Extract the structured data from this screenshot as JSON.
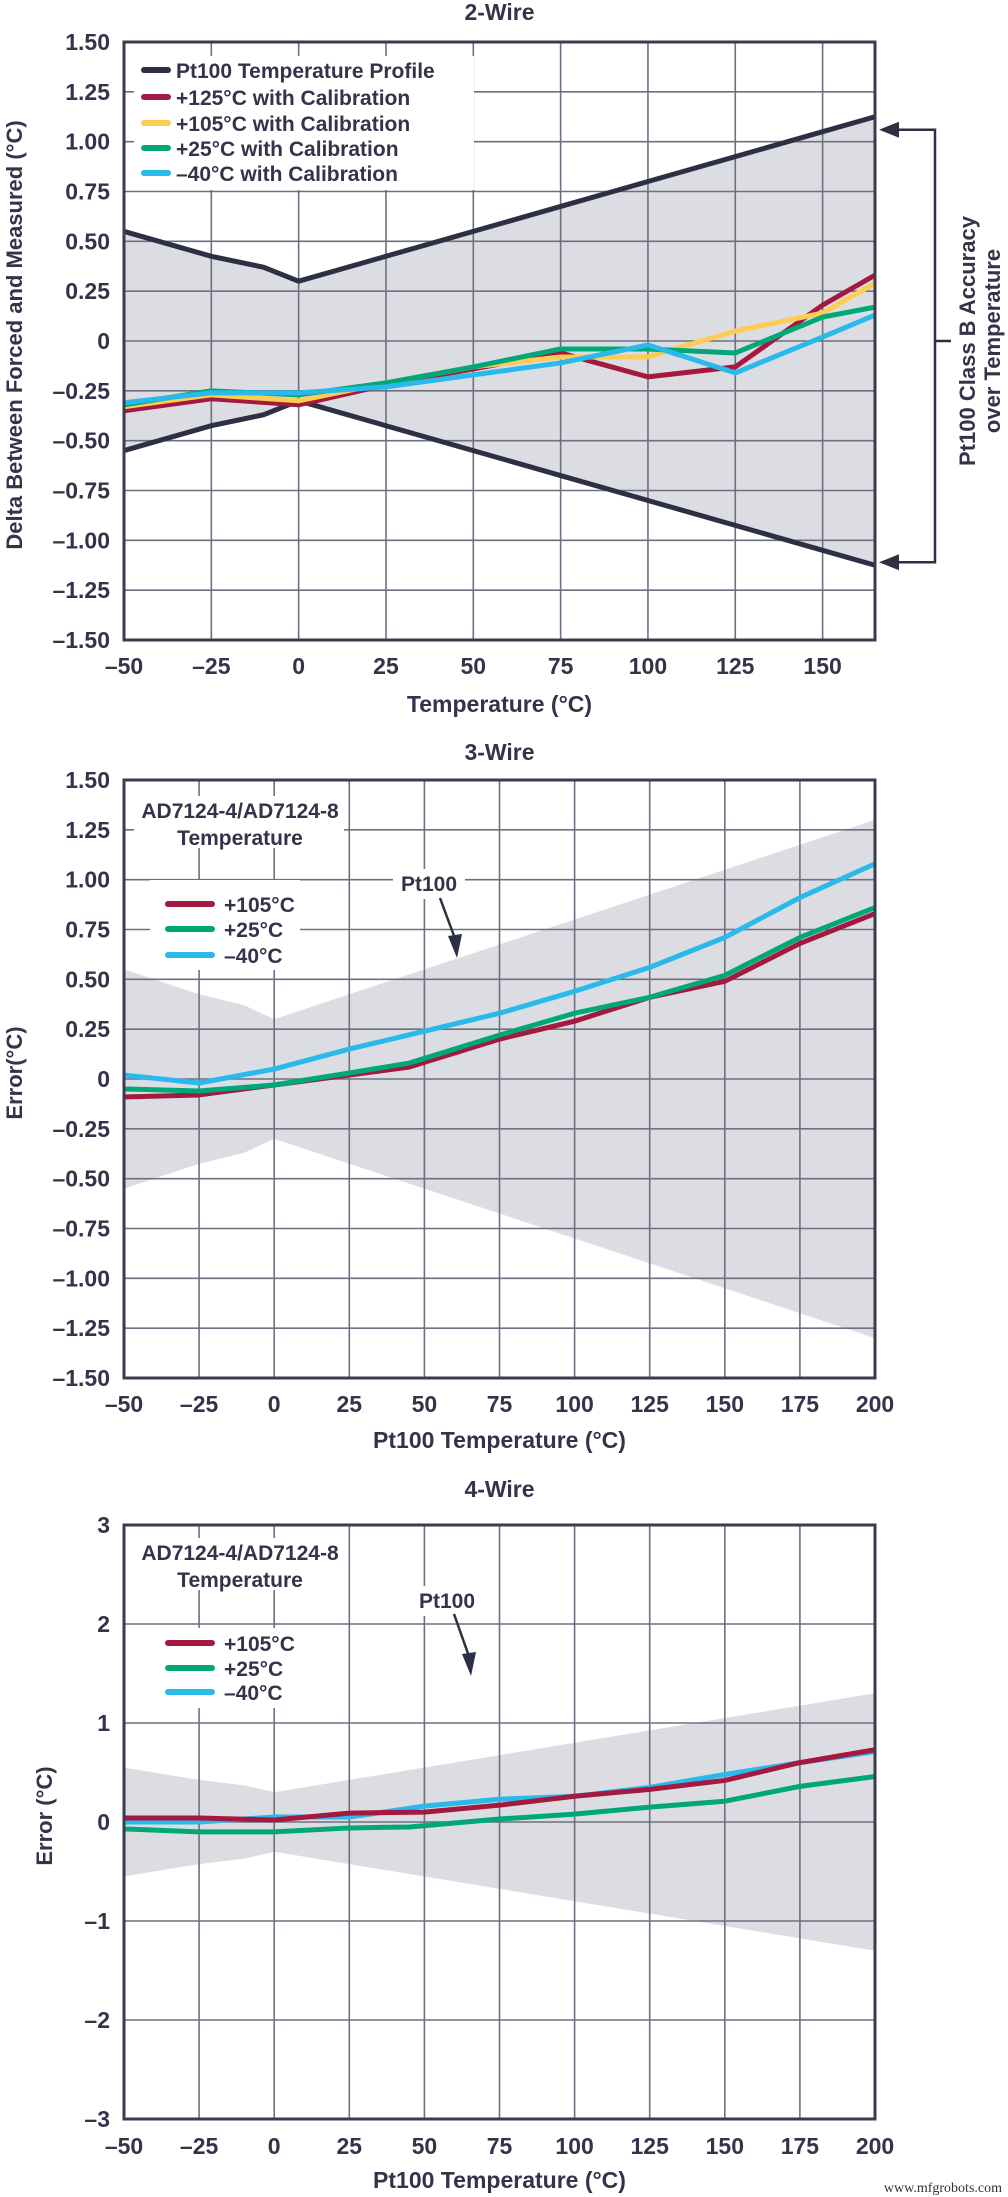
{
  "colors": {
    "profile": "#2d2f45",
    "red": "#a3193f",
    "yellow": "#fdcc52",
    "green": "#00a878",
    "cyan": "#29b9ea",
    "band": "#dcdde3",
    "grid": "#6e6f80"
  },
  "watermark": "www.mfgrobots.com",
  "chart_data": [
    {
      "type": "line",
      "title": "2-Wire",
      "xlabel": "Temperature (°C)",
      "ylabel": "Delta Between Forced and Measured (°C)",
      "xlim": [
        -50,
        165
      ],
      "ylim": [
        -1.5,
        1.5
      ],
      "xticks": [
        -50,
        -25,
        0,
        25,
        50,
        75,
        100,
        125,
        150
      ],
      "xtick_labels": [
        "–50",
        "–25",
        "0",
        "25",
        "50",
        "75",
        "100",
        "125",
        "150"
      ],
      "yticks": [
        1.5,
        1.25,
        1.0,
        0.75,
        0.5,
        0.25,
        0,
        -0.25,
        -0.5,
        -0.75,
        -1.0,
        -1.25,
        -1.5
      ],
      "ytick_labels": [
        "1.50",
        "1.25",
        "1.00",
        "0.75",
        "0.50",
        "0.25",
        "0",
        "–0.25",
        "–0.50",
        "–0.75",
        "–1.00",
        "–1.25",
        "–1.50"
      ],
      "grid": true,
      "legend_placement": "top-left",
      "band_x": [
        -50,
        -25,
        -10,
        0,
        25,
        50,
        75,
        100,
        125,
        150,
        165
      ],
      "band_upper": [
        0.55,
        0.425,
        0.37,
        0.3,
        0.425,
        0.55,
        0.675,
        0.8,
        0.925,
        1.05,
        1.125
      ],
      "band_lower": [
        -0.55,
        -0.425,
        -0.37,
        -0.3,
        -0.425,
        -0.55,
        -0.675,
        -0.8,
        -0.925,
        -1.05,
        -1.125
      ],
      "band_series_name": "Pt100 Temperature Profile",
      "band_annotation": [
        "Pt100 Class B Accuracy",
        "over Temperature"
      ],
      "series": [
        {
          "name": "+125°C with Calibration",
          "color": "#a3193f",
          "x": [
            -50,
            -25,
            0,
            25,
            50,
            75,
            100,
            125,
            150,
            165
          ],
          "y": [
            -0.35,
            -0.29,
            -0.32,
            -0.22,
            -0.14,
            -0.06,
            -0.18,
            -0.13,
            0.18,
            0.33
          ]
        },
        {
          "name": "+105°C with Calibration",
          "color": "#fdcc52",
          "x": [
            -50,
            -25,
            0,
            25,
            50,
            75,
            100,
            125,
            150,
            165
          ],
          "y": [
            -0.33,
            -0.27,
            -0.3,
            -0.21,
            -0.13,
            -0.08,
            -0.08,
            0.05,
            0.14,
            0.29
          ]
        },
        {
          "name": "+25°C with Calibration",
          "color": "#00a878",
          "x": [
            -50,
            -25,
            0,
            25,
            50,
            75,
            100,
            125,
            150,
            165
          ],
          "y": [
            -0.32,
            -0.25,
            -0.27,
            -0.21,
            -0.13,
            -0.04,
            -0.04,
            -0.06,
            0.12,
            0.17
          ]
        },
        {
          "name": "–40°C with Calibration",
          "color": "#29b9ea",
          "x": [
            -50,
            -25,
            0,
            25,
            50,
            75,
            100,
            125,
            150,
            165
          ],
          "y": [
            -0.31,
            -0.26,
            -0.26,
            -0.23,
            -0.17,
            -0.11,
            -0.02,
            -0.16,
            0.02,
            0.13
          ]
        }
      ]
    },
    {
      "type": "line",
      "title": "3-Wire",
      "xlabel": "Pt100 Temperature (°C)",
      "ylabel": "Error(°C)",
      "xlim": [
        -50,
        200
      ],
      "ylim": [
        -1.5,
        1.5
      ],
      "xticks": [
        -50,
        -25,
        0,
        25,
        50,
        75,
        100,
        125,
        150,
        175,
        200
      ],
      "xtick_labels": [
        "–50",
        "–25",
        "0",
        "25",
        "50",
        "75",
        "100",
        "125",
        "150",
        "175",
        "200"
      ],
      "yticks": [
        1.5,
        1.25,
        1.0,
        0.75,
        0.5,
        0.25,
        0,
        -0.25,
        -0.5,
        -0.75,
        -1.0,
        -1.25,
        -1.5
      ],
      "ytick_labels": [
        "1.50",
        "1.25",
        "1.00",
        "0.75",
        "0.50",
        "0.25",
        "0",
        "–0.25",
        "–0.50",
        "–0.75",
        "–1.00",
        "–1.25",
        "–1.50"
      ],
      "grid": true,
      "legend_placement": "top-left",
      "legend_title": [
        "AD7124-4/AD7124-8",
        "Temperature"
      ],
      "band_label": "Pt100",
      "band_x": [
        -50,
        -25,
        -10,
        0,
        25,
        50,
        75,
        100,
        125,
        150,
        175,
        200
      ],
      "band_upper": [
        0.55,
        0.425,
        0.37,
        0.3,
        0.425,
        0.55,
        0.675,
        0.8,
        0.925,
        1.05,
        1.175,
        1.3
      ],
      "band_lower": [
        -0.55,
        -0.425,
        -0.37,
        -0.3,
        -0.425,
        -0.55,
        -0.675,
        -0.8,
        -0.925,
        -1.05,
        -1.175,
        -1.3
      ],
      "series": [
        {
          "name": "+105°C",
          "color": "#a3193f",
          "x": [
            -50,
            -25,
            0,
            25,
            45,
            75,
            100,
            125,
            150,
            175,
            200
          ],
          "y": [
            -0.09,
            -0.08,
            -0.03,
            0.02,
            0.06,
            0.2,
            0.29,
            0.41,
            0.49,
            0.68,
            0.83
          ]
        },
        {
          "name": "+25°C",
          "color": "#00a878",
          "x": [
            -50,
            -25,
            0,
            25,
            45,
            75,
            100,
            125,
            150,
            175,
            200
          ],
          "y": [
            -0.05,
            -0.06,
            -0.03,
            0.03,
            0.08,
            0.22,
            0.33,
            0.41,
            0.52,
            0.71,
            0.86
          ]
        },
        {
          "name": "–40°C",
          "color": "#29b9ea",
          "x": [
            -50,
            -25,
            0,
            25,
            50,
            75,
            100,
            125,
            150,
            175,
            200
          ],
          "y": [
            0.02,
            -0.02,
            0.05,
            0.15,
            0.24,
            0.33,
            0.44,
            0.56,
            0.71,
            0.91,
            1.08
          ]
        }
      ]
    },
    {
      "type": "line",
      "title": "4-Wire",
      "xlabel": "Pt100 Temperature (°C)",
      "ylabel": "Error (°C)",
      "xlim": [
        -50,
        200
      ],
      "ylim": [
        -3,
        3
      ],
      "xticks": [
        -50,
        -25,
        0,
        25,
        50,
        75,
        100,
        125,
        150,
        175,
        200
      ],
      "xtick_labels": [
        "–50",
        "–25",
        "0",
        "25",
        "50",
        "75",
        "100",
        "125",
        "150",
        "175",
        "200"
      ],
      "yticks": [
        3,
        2,
        1,
        0,
        -1,
        -2,
        -3
      ],
      "ytick_labels": [
        "3",
        "2",
        "1",
        "0",
        "–1",
        "–2",
        "–3"
      ],
      "grid": true,
      "legend_placement": "top-left",
      "legend_title": [
        "AD7124-4/AD7124-8",
        "Temperature"
      ],
      "band_label": "Pt100",
      "band_x": [
        -50,
        -25,
        -10,
        0,
        25,
        50,
        75,
        100,
        125,
        150,
        175,
        200
      ],
      "band_upper": [
        0.55,
        0.425,
        0.37,
        0.3,
        0.425,
        0.55,
        0.675,
        0.8,
        0.925,
        1.05,
        1.175,
        1.3
      ],
      "band_lower": [
        -0.55,
        -0.425,
        -0.37,
        -0.3,
        -0.425,
        -0.55,
        -0.675,
        -0.8,
        -0.925,
        -1.05,
        -1.175,
        -1.3
      ],
      "series": [
        {
          "name": "–40°C",
          "color": "#29b9ea",
          "x": [
            -50,
            -25,
            0,
            25,
            50,
            75,
            100,
            125,
            150,
            175,
            200
          ],
          "y": [
            0.0,
            0.0,
            0.05,
            0.05,
            0.16,
            0.23,
            0.26,
            0.35,
            0.48,
            0.6,
            0.71
          ]
        },
        {
          "name": "+25°C",
          "color": "#00a878",
          "x": [
            -50,
            -25,
            0,
            25,
            45,
            75,
            100,
            125,
            150,
            175,
            200
          ],
          "y": [
            -0.07,
            -0.1,
            -0.1,
            -0.06,
            -0.05,
            0.03,
            0.08,
            0.15,
            0.21,
            0.36,
            0.46
          ]
        },
        {
          "name": "+105°C",
          "color": "#a3193f",
          "x": [
            -50,
            -25,
            0,
            25,
            50,
            75,
            100,
            125,
            150,
            175,
            200
          ],
          "y": [
            0.04,
            0.04,
            0.02,
            0.09,
            0.1,
            0.17,
            0.26,
            0.33,
            0.42,
            0.6,
            0.73
          ]
        }
      ]
    }
  ]
}
